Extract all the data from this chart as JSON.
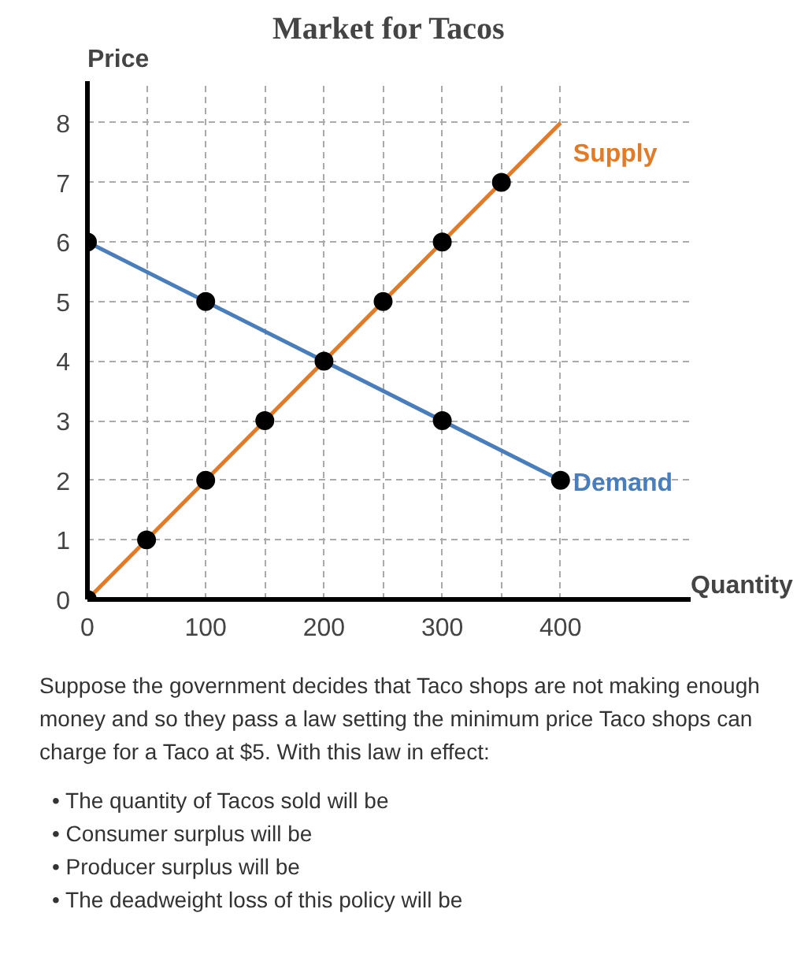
{
  "chart_data": {
    "type": "line",
    "title": "Market for Tacos",
    "xlabel": "Quantity",
    "ylabel": "Price",
    "xlim": [
      0,
      510
    ],
    "ylim": [
      0,
      8.7
    ],
    "xticks": [
      0,
      {
        "value": 50,
        "label": null
      },
      100,
      {
        "value": 150,
        "label": null
      },
      200,
      {
        "value": 250,
        "label": null
      },
      300,
      {
        "value": 350,
        "label": null
      },
      400
    ],
    "yticks": [
      0,
      1,
      2,
      3,
      4,
      5,
      6,
      7,
      8
    ],
    "grid": true,
    "series": [
      {
        "name": "Supply",
        "color": "#e07b29",
        "x": [
          0,
          400
        ],
        "values": [
          0,
          8
        ],
        "marker": "none"
      },
      {
        "name": "Demand",
        "color": "#4a7ebb",
        "x": [
          0,
          400
        ],
        "values": [
          6,
          2
        ],
        "marker": "none"
      },
      {
        "type": "scatter",
        "color": "#000000",
        "x": [
          0,
          50,
          100,
          150,
          200,
          250,
          300,
          350
        ],
        "values": [
          0,
          1,
          2,
          3,
          4,
          5,
          6,
          7
        ],
        "marker": "circle"
      },
      {
        "type": "scatter",
        "color": "#000000",
        "x": [
          0,
          100,
          300,
          400
        ],
        "values": [
          6,
          5,
          3,
          2
        ],
        "marker": "circle"
      }
    ],
    "annotations": [
      "Suppose the government decides that Taco shops are not making enough money and so they pass a law setting the minimum price Taco shops can charge for a Taco at $5. With this law in effect:",
      "• The quantity of Tacos sold will be",
      "• Consumer surplus will be",
      "• Producer surplus will be",
      "• The deadweight loss of this policy will be"
    ]
  }
}
